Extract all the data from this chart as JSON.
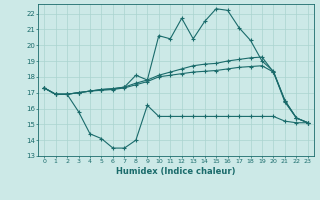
{
  "xlabel": "Humidex (Indice chaleur)",
  "ylabel": "",
  "xlim": [
    -0.5,
    23.5
  ],
  "ylim": [
    13,
    22.6
  ],
  "yticks": [
    13,
    14,
    15,
    16,
    17,
    18,
    19,
    20,
    21,
    22
  ],
  "xticks": [
    0,
    1,
    2,
    3,
    4,
    5,
    6,
    7,
    8,
    9,
    10,
    11,
    12,
    13,
    14,
    15,
    16,
    17,
    18,
    19,
    20,
    21,
    22,
    23
  ],
  "bg_color": "#cce9e7",
  "grid_color": "#aad4d0",
  "line_color": "#1a6b6b",
  "line1_x": [
    0,
    1,
    2,
    3,
    4,
    5,
    6,
    7,
    8,
    9,
    10,
    11,
    12,
    13,
    14,
    15,
    16,
    17,
    18,
    19,
    20,
    21,
    22,
    23
  ],
  "line1_y": [
    17.3,
    16.9,
    16.9,
    15.8,
    14.4,
    14.1,
    13.5,
    13.5,
    14.0,
    16.2,
    15.5,
    15.5,
    15.5,
    15.5,
    15.5,
    15.5,
    15.5,
    15.5,
    15.5,
    15.5,
    15.5,
    15.2,
    15.1,
    15.1
  ],
  "line2_x": [
    0,
    1,
    2,
    3,
    4,
    5,
    6,
    7,
    8,
    9,
    10,
    11,
    12,
    13,
    14,
    15,
    16,
    17,
    18,
    19,
    20,
    21,
    22,
    23
  ],
  "line2_y": [
    17.3,
    16.9,
    16.9,
    17.0,
    17.1,
    17.15,
    17.2,
    17.3,
    17.5,
    17.7,
    18.0,
    18.1,
    18.2,
    18.3,
    18.35,
    18.4,
    18.5,
    18.6,
    18.65,
    18.7,
    18.3,
    16.4,
    15.4,
    15.1
  ],
  "line3_x": [
    0,
    1,
    2,
    3,
    4,
    5,
    6,
    7,
    8,
    9,
    10,
    11,
    12,
    13,
    14,
    15,
    16,
    17,
    18,
    19,
    20,
    21,
    22,
    23
  ],
  "line3_y": [
    17.3,
    16.9,
    16.9,
    17.0,
    17.1,
    17.2,
    17.25,
    17.35,
    17.6,
    17.8,
    18.1,
    18.3,
    18.5,
    18.7,
    18.8,
    18.85,
    19.0,
    19.1,
    19.2,
    19.25,
    18.3,
    16.5,
    15.4,
    15.1
  ],
  "line4_x": [
    0,
    1,
    2,
    3,
    4,
    5,
    6,
    7,
    8,
    9,
    10,
    11,
    12,
    13,
    14,
    15,
    16,
    17,
    18,
    19,
    20,
    21,
    22,
    23
  ],
  "line4_y": [
    17.3,
    16.9,
    16.9,
    17.0,
    17.1,
    17.2,
    17.25,
    17.35,
    18.1,
    17.8,
    20.6,
    20.4,
    21.7,
    20.4,
    21.5,
    22.3,
    22.2,
    21.1,
    20.3,
    19.0,
    18.35,
    16.5,
    15.4,
    15.1
  ]
}
